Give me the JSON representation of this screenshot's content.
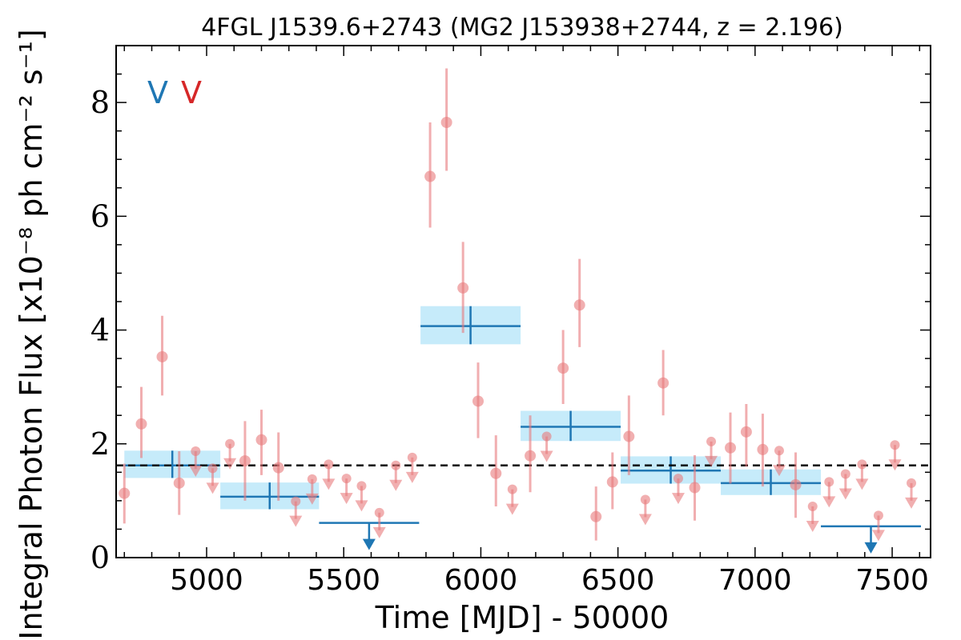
{
  "chart_data": {
    "type": "scatter",
    "title": "4FGL J1539.6+2743 (MG2 J153938+2744, z = 2.196)",
    "xlabel": "Time [MJD] - 50000",
    "ylabel": "Integral Photon Flux [x10⁻⁸ ph cm⁻² s⁻¹]",
    "xlim": [
      4670,
      7640
    ],
    "ylim": [
      0,
      9
    ],
    "x_ticks": [
      "5000",
      "5500",
      "6000",
      "6500",
      "7000",
      "7500"
    ],
    "y_ticks": [
      "0",
      "2",
      "4",
      "6",
      "8"
    ],
    "grid": false,
    "variability_flags": [
      {
        "text": "V",
        "color": "#1f77b4"
      },
      {
        "text": "V",
        "color": "#d62728"
      }
    ],
    "mean_flux": 1.62,
    "colors": {
      "monthly": "#e8797c",
      "yearly": "#1f77b4",
      "yearly_band": "#c6ebfa",
      "mean_line": "#000000"
    },
    "series": [
      {
        "kind": "detections",
        "points": [
          {
            "x": 4700,
            "y": 1.13,
            "lo": 0.6,
            "hi": 1.65
          },
          {
            "x": 4762,
            "y": 2.35,
            "lo": 1.75,
            "hi": 3.0
          },
          {
            "x": 4838,
            "y": 3.53,
            "lo": 2.85,
            "hi": 4.25
          },
          {
            "x": 4900,
            "y": 1.31,
            "lo": 0.75,
            "hi": 1.87
          },
          {
            "x": 5140,
            "y": 1.7,
            "lo": 1.0,
            "hi": 2.4
          },
          {
            "x": 5200,
            "y": 2.07,
            "lo": 1.45,
            "hi": 2.6
          },
          {
            "x": 5262,
            "y": 1.58,
            "lo": 1.0,
            "hi": 2.2
          },
          {
            "x": 5815,
            "y": 6.7,
            "lo": 5.8,
            "hi": 7.65
          },
          {
            "x": 5875,
            "y": 7.65,
            "lo": 6.8,
            "hi": 8.6
          },
          {
            "x": 5935,
            "y": 4.74,
            "lo": 3.95,
            "hi": 5.55
          },
          {
            "x": 5990,
            "y": 2.75,
            "lo": 2.1,
            "hi": 3.43
          },
          {
            "x": 6055,
            "y": 1.48,
            "lo": 0.9,
            "hi": 2.15
          },
          {
            "x": 6180,
            "y": 1.79,
            "lo": 1.15,
            "hi": 2.5
          },
          {
            "x": 6300,
            "y": 3.33,
            "lo": 2.7,
            "hi": 4.0
          },
          {
            "x": 6360,
            "y": 4.44,
            "lo": 3.7,
            "hi": 5.25
          },
          {
            "x": 6420,
            "y": 0.72,
            "lo": 0.3,
            "hi": 1.25
          },
          {
            "x": 6480,
            "y": 1.33,
            "lo": 0.85,
            "hi": 1.85
          },
          {
            "x": 6540,
            "y": 2.13,
            "lo": 1.45,
            "hi": 2.85
          },
          {
            "x": 6665,
            "y": 3.07,
            "lo": 2.5,
            "hi": 3.65
          },
          {
            "x": 6780,
            "y": 1.23,
            "lo": 0.65,
            "hi": 1.8
          },
          {
            "x": 6910,
            "y": 1.93,
            "lo": 1.3,
            "hi": 2.55
          },
          {
            "x": 6968,
            "y": 2.21,
            "lo": 1.6,
            "hi": 2.7
          },
          {
            "x": 7028,
            "y": 1.9,
            "lo": 1.25,
            "hi": 2.53
          },
          {
            "x": 7148,
            "y": 1.28,
            "lo": 0.7,
            "hi": 1.85
          }
        ]
      },
      {
        "kind": "upper_limits",
        "points": [
          {
            "x": 4960,
            "y": 1.87
          },
          {
            "x": 5022,
            "y": 1.57
          },
          {
            "x": 5085,
            "y": 2.0
          },
          {
            "x": 5325,
            "y": 0.99
          },
          {
            "x": 5385,
            "y": 1.38
          },
          {
            "x": 5445,
            "y": 1.64
          },
          {
            "x": 5510,
            "y": 1.39
          },
          {
            "x": 5565,
            "y": 1.26
          },
          {
            "x": 5630,
            "y": 0.79
          },
          {
            "x": 5690,
            "y": 1.62
          },
          {
            "x": 5750,
            "y": 1.76
          },
          {
            "x": 6115,
            "y": 1.2
          },
          {
            "x": 6240,
            "y": 2.13
          },
          {
            "x": 6600,
            "y": 1.02
          },
          {
            "x": 6720,
            "y": 1.39
          },
          {
            "x": 6840,
            "y": 2.04
          },
          {
            "x": 7088,
            "y": 1.88
          },
          {
            "x": 7210,
            "y": 0.9
          },
          {
            "x": 7270,
            "y": 1.33
          },
          {
            "x": 7330,
            "y": 1.47
          },
          {
            "x": 7390,
            "y": 1.64
          },
          {
            "x": 7450,
            "y": 0.74
          },
          {
            "x": 7510,
            "y": 1.98
          },
          {
            "x": 7570,
            "y": 1.31
          }
        ]
      },
      {
        "kind": "yearly_bins",
        "bins": [
          {
            "x0": 4700,
            "x1": 5050,
            "y": 1.62,
            "lo": 1.4,
            "hi": 1.88
          },
          {
            "x0": 5050,
            "x1": 5410,
            "y": 1.07,
            "lo": 0.85,
            "hi": 1.32
          },
          {
            "x0": 5780,
            "x1": 6145,
            "y": 4.07,
            "lo": 3.75,
            "hi": 4.42
          },
          {
            "x0": 6145,
            "x1": 6510,
            "y": 2.3,
            "lo": 2.05,
            "hi": 2.58
          },
          {
            "x0": 6510,
            "x1": 6875,
            "y": 1.53,
            "lo": 1.3,
            "hi": 1.78
          },
          {
            "x0": 6875,
            "x1": 7240,
            "y": 1.31,
            "lo": 1.1,
            "hi": 1.55
          }
        ]
      },
      {
        "kind": "yearly_upper_limits",
        "bins": [
          {
            "x0": 5410,
            "x1": 5775,
            "y": 0.61
          },
          {
            "x0": 7240,
            "x1": 7605,
            "y": 0.55
          }
        ]
      }
    ]
  }
}
